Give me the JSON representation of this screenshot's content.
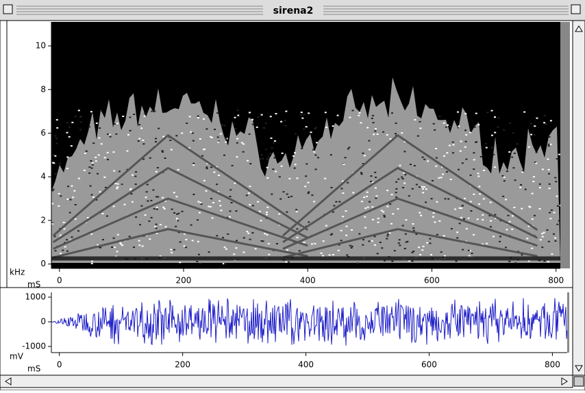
{
  "window": {
    "title": "sirena2"
  },
  "charts": [
    {
      "type": "spectrogram",
      "y_label": "kHz",
      "x_label": "mS",
      "xlim": [
        -13,
        807
      ],
      "xticks": [
        0,
        200,
        400,
        600,
        800
      ],
      "ylim": [
        -0.2,
        11.1
      ],
      "yticks": [
        0,
        2,
        4,
        6,
        8,
        10
      ]
    },
    {
      "type": "waveform",
      "y_label": "mV",
      "x_label": "mS",
      "color": "#1c1cc8",
      "xlim": [
        -13,
        824
      ],
      "xticks": [
        0,
        200,
        400,
        600,
        800
      ],
      "ylim": [
        -1250,
        1194
      ],
      "yticks": [
        -1000,
        0,
        1000
      ]
    }
  ]
}
